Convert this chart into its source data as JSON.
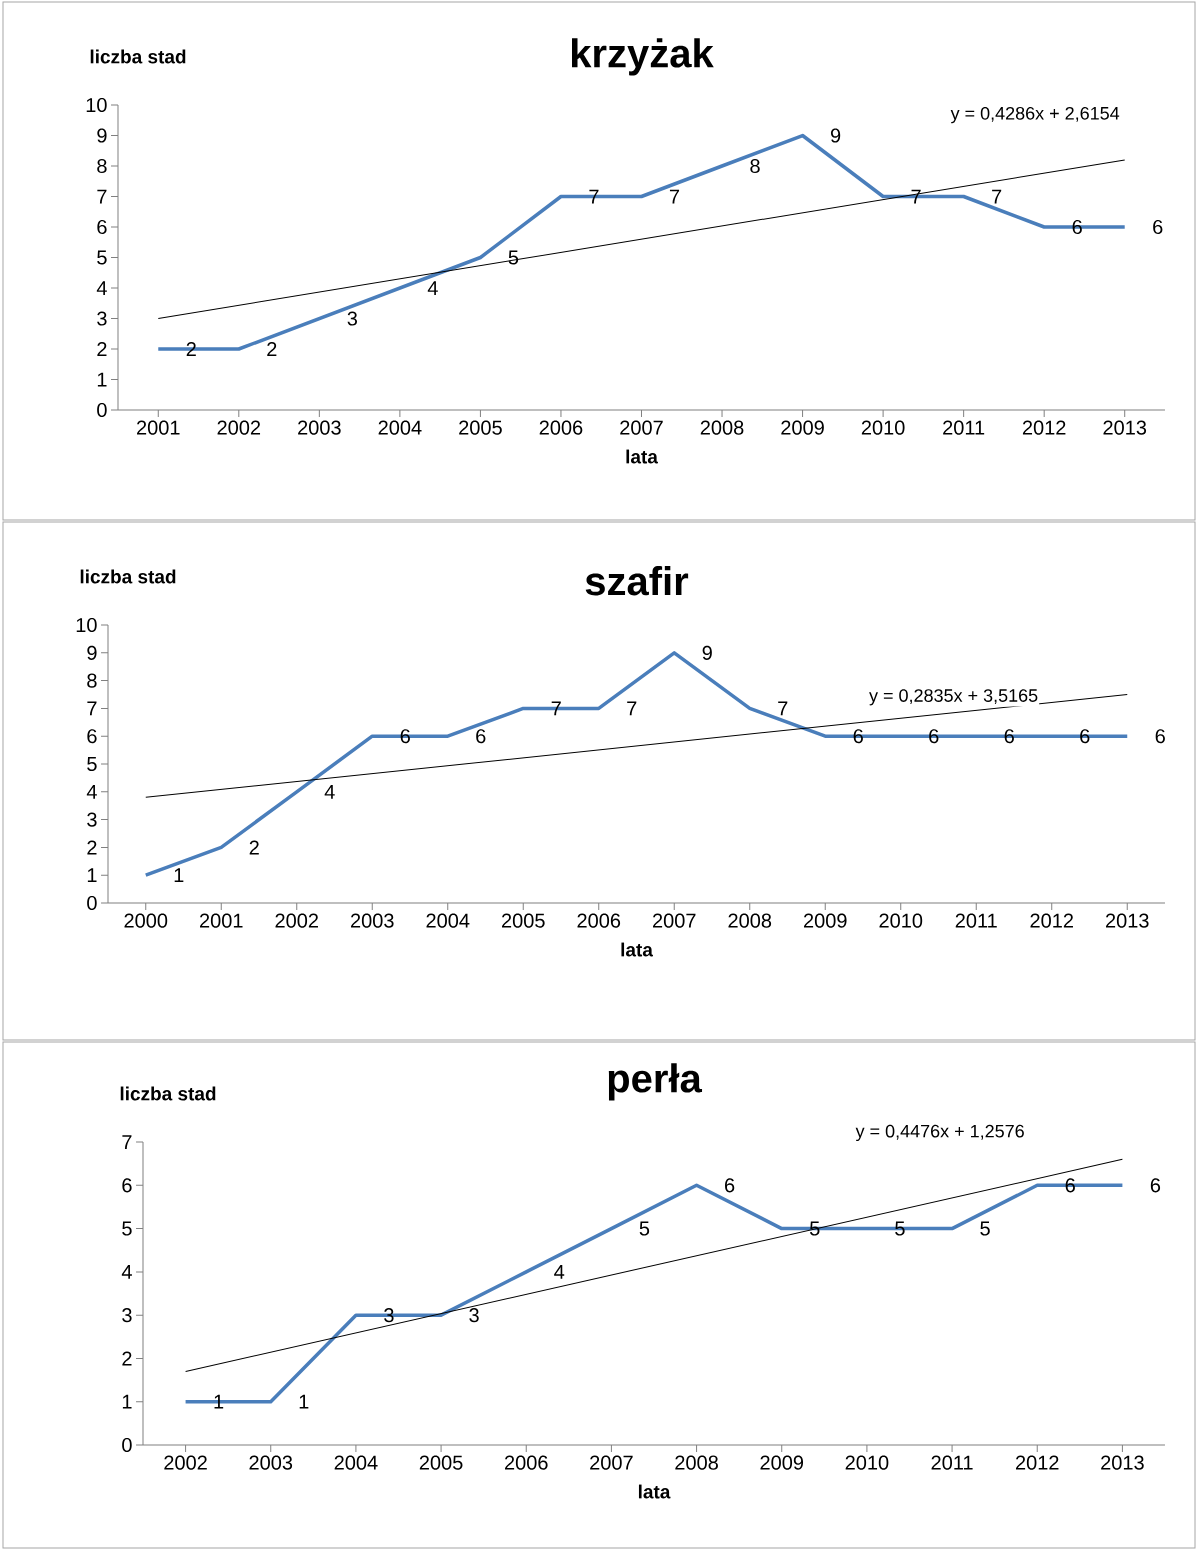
{
  "chart_data": [
    {
      "type": "line",
      "title": "krzyżak",
      "xlabel": "lata",
      "ylabel": "liczba stad",
      "marker": "none",
      "series": [
        {
          "color": "#4a7ebb",
          "x": [
            2001,
            2002,
            2003,
            2004,
            2005,
            2006,
            2007,
            2008,
            2009,
            2010,
            2011,
            2012,
            2013
          ],
          "values": [
            2,
            2,
            3,
            4,
            5,
            7,
            7,
            8,
            9,
            7,
            7,
            6,
            6
          ],
          "value_labels": [
            "2",
            "2",
            "3",
            "4",
            "5",
            "7",
            "7",
            "8",
            "9",
            "7",
            "7",
            "6",
            "6"
          ]
        },
        {
          "type": "line",
          "color": "#000000",
          "x": [
            2001,
            2013
          ],
          "values": [
            3.0,
            8.2
          ]
        }
      ],
      "xlim": [
        2000.5,
        2013.5
      ],
      "xticks": [
        2001,
        2002,
        2003,
        2004,
        2005,
        2006,
        2007,
        2008,
        2009,
        2010,
        2011,
        2012,
        2013
      ],
      "ylim": [
        0,
        10
      ],
      "yticks": [
        0,
        1,
        2,
        3,
        4,
        5,
        6,
        7,
        8,
        9,
        10
      ],
      "annotations": [
        "y = 0,4286x + 2,6154"
      ]
    },
    {
      "type": "line",
      "title": "szafir",
      "xlabel": "lata",
      "ylabel": "liczba stad",
      "marker": "none",
      "series": [
        {
          "color": "#4a7ebb",
          "x": [
            2000,
            2001,
            2002,
            2003,
            2004,
            2005,
            2006,
            2007,
            2008,
            2009,
            2010,
            2011,
            2012,
            2013
          ],
          "values": [
            1,
            2,
            4,
            6,
            6,
            7,
            7,
            9,
            7,
            6,
            6,
            6,
            6,
            6
          ],
          "value_labels": [
            "1",
            "2",
            "4",
            "6",
            "6",
            "7",
            "7",
            "9",
            "7",
            "6",
            "6",
            "6",
            "6",
            "6"
          ]
        },
        {
          "type": "line",
          "color": "#000000",
          "x": [
            2000,
            2013
          ],
          "values": [
            3.8,
            7.5
          ]
        }
      ],
      "xlim": [
        1999.5,
        2013.5
      ],
      "xticks": [
        2000,
        2001,
        2002,
        2003,
        2004,
        2005,
        2006,
        2007,
        2008,
        2009,
        2010,
        2011,
        2012,
        2013
      ],
      "ylim": [
        0,
        10
      ],
      "yticks": [
        0,
        1,
        2,
        3,
        4,
        5,
        6,
        7,
        8,
        9,
        10
      ],
      "annotations": [
        "y = 0,2835x + 3,5165"
      ]
    },
    {
      "type": "line",
      "title": "perła",
      "xlabel": "lata",
      "ylabel": "liczba stad",
      "marker": "none",
      "series": [
        {
          "color": "#4a7ebb",
          "x": [
            2002,
            2003,
            2004,
            2005,
            2006,
            2007,
            2008,
            2009,
            2010,
            2011,
            2012,
            2013
          ],
          "values": [
            1,
            1,
            3,
            3,
            4,
            5,
            6,
            5,
            5,
            5,
            6,
            6
          ],
          "value_labels": [
            "1",
            "1",
            "3",
            "3",
            "4",
            "5",
            "6",
            "5",
            "5",
            "5",
            "6",
            "6"
          ]
        },
        {
          "type": "line",
          "color": "#000000",
          "x": [
            2002,
            2013
          ],
          "values": [
            1.7,
            6.6
          ]
        }
      ],
      "xlim": [
        2001.5,
        2013.5
      ],
      "xticks": [
        2002,
        2003,
        2004,
        2005,
        2006,
        2007,
        2008,
        2009,
        2010,
        2011,
        2012,
        2013
      ],
      "ylim": [
        0,
        7
      ],
      "yticks": [
        0,
        1,
        2,
        3,
        4,
        5,
        6,
        7
      ],
      "annotations": [
        "y = 0,4476x + 1,2576"
      ]
    }
  ]
}
